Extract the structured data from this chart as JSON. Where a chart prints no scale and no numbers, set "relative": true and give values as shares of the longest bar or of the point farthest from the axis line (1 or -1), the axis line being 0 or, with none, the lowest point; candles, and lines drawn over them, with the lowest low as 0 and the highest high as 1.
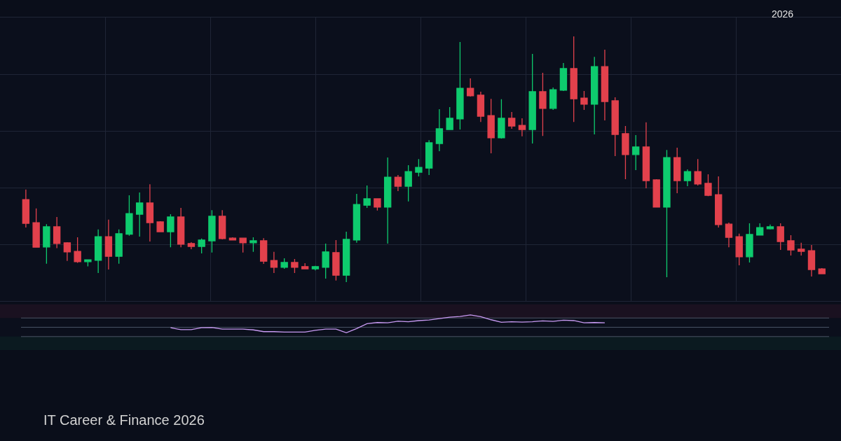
{
  "chart_data": [
    {
      "type": "candlestick",
      "relative": true,
      "grid": true,
      "annotations": [
        "2026",
        "IT Career & Finance 2026"
      ],
      "categories": [
        null,
        null,
        null,
        null,
        null,
        null,
        null,
        null,
        null,
        null,
        null,
        null,
        null,
        null,
        null,
        null,
        null,
        null,
        null,
        null,
        null,
        null,
        null,
        null,
        null,
        null,
        null,
        null,
        null,
        null,
        null,
        null,
        null,
        null,
        null,
        null,
        null,
        null,
        null,
        null,
        null,
        null,
        null,
        null,
        null,
        null,
        null,
        null,
        null,
        null,
        null,
        null,
        null,
        null,
        null,
        null,
        null,
        null,
        null,
        null,
        null,
        null,
        null,
        null,
        null,
        null,
        null,
        null,
        null,
        null,
        null,
        null,
        null,
        null,
        null,
        null,
        null,
        null
      ],
      "ohlc": [
        [
          0.336,
          0.377,
          0.222,
          0.239
        ],
        [
          0.242,
          0.3,
          0.14,
          0.142
        ],
        [
          0.143,
          0.236,
          0.075,
          0.225
        ],
        [
          0.225,
          0.265,
          0.138,
          0.157
        ],
        [
          0.16,
          0.162,
          0.086,
          0.123
        ],
        [
          0.125,
          0.182,
          0.078,
          0.083
        ],
        [
          0.083,
          0.091,
          0.064,
          0.091
        ],
        [
          0.089,
          0.214,
          0.037,
          0.185
        ],
        [
          0.185,
          0.254,
          0.051,
          0.105
        ],
        [
          0.105,
          0.214,
          0.075,
          0.197
        ],
        [
          0.195,
          0.353,
          0.189,
          0.279
        ],
        [
          0.276,
          0.365,
          0.185,
          0.322
        ],
        [
          0.322,
          0.398,
          0.165,
          0.242
        ],
        [
          0.245,
          0.248,
          0.205,
          0.205
        ],
        [
          0.205,
          0.276,
          0.142,
          0.265
        ],
        [
          0.265,
          0.302,
          0.142,
          0.154
        ],
        [
          0.157,
          0.162,
          0.134,
          0.145
        ],
        [
          0.145,
          0.177,
          0.117,
          0.171
        ],
        [
          0.168,
          0.293,
          0.12,
          0.268
        ],
        [
          0.268,
          0.293,
          0.174,
          0.177
        ],
        [
          0.179,
          0.182,
          0.171,
          0.171
        ],
        [
          0.179,
          0.179,
          0.12,
          0.16
        ],
        [
          0.16,
          0.182,
          0.123,
          0.168
        ],
        [
          0.168,
          0.179,
          0.074,
          0.085
        ],
        [
          0.088,
          0.123,
          0.037,
          0.06
        ],
        [
          0.06,
          0.097,
          0.054,
          0.08
        ],
        [
          0.08,
          0.094,
          0.037,
          0.06
        ],
        [
          0.063,
          0.077,
          0.054,
          0.054
        ],
        [
          0.054,
          0.066,
          0.048,
          0.063
        ],
        [
          0.06,
          0.157,
          0.014,
          0.123
        ],
        [
          0.12,
          0.171,
          0.006,
          0.028
        ],
        [
          0.028,
          0.205,
          0,
          0.174
        ],
        [
          0.171,
          0.359,
          0.16,
          0.316
        ],
        [
          0.313,
          0.393,
          0.302,
          0.339
        ],
        [
          0.339,
          0.339,
          0.291,
          0.305
        ],
        [
          0.305,
          0.507,
          0.157,
          0.427
        ],
        [
          0.427,
          0.436,
          0.37,
          0.39
        ],
        [
          0.39,
          0.476,
          0.328,
          0.45
        ],
        [
          0.447,
          0.501,
          0.43,
          0.467
        ],
        [
          0.464,
          0.578,
          0.436,
          0.567
        ],
        [
          0.564,
          0.704,
          0.533,
          0.624
        ],
        [
          0.621,
          0.712,
          0.621,
          0.667
        ],
        [
          0.664,
          0.977,
          0.621,
          0.789
        ],
        [
          0.789,
          0.829,
          0.755,
          0.758
        ],
        [
          0.761,
          0.775,
          0.652,
          0.675
        ],
        [
          0.678,
          0.746,
          0.524,
          0.587
        ],
        [
          0.587,
          0.744,
          0.584,
          0.667
        ],
        [
          0.667,
          0.692,
          0.624,
          0.635
        ],
        [
          0.638,
          0.667,
          0.593,
          0.621
        ],
        [
          0.621,
          0.929,
          0.564,
          0.775
        ],
        [
          0.775,
          0.852,
          0.595,
          0.707
        ],
        [
          0.707,
          0.792,
          0.701,
          0.783
        ],
        [
          0.781,
          0.892,
          0.778,
          0.869
        ],
        [
          0.869,
          1,
          0.652,
          0.746
        ],
        [
          0.749,
          0.778,
          0.701,
          0.724
        ],
        [
          0.724,
          0.917,
          0.601,
          0.877
        ],
        [
          0.877,
          0.946,
          0.658,
          0.735
        ],
        [
          0.738,
          0.752,
          0.513,
          0.601
        ],
        [
          0.604,
          0.635,
          0.419,
          0.519
        ],
        [
          0.519,
          0.598,
          0.456,
          0.55
        ],
        [
          0.55,
          0.65,
          0.382,
          0.413
        ],
        [
          0.416,
          0.419,
          0.305,
          0.305
        ],
        [
          0.305,
          0.538,
          0.02,
          0.507
        ],
        [
          0.507,
          0.547,
          0.362,
          0.413
        ],
        [
          0.413,
          0.459,
          0.39,
          0.45
        ],
        [
          0.45,
          0.501,
          0.393,
          0.399
        ],
        [
          0.402,
          0.439,
          0.35,
          0.353
        ],
        [
          0.356,
          0.43,
          0.222,
          0.234
        ],
        [
          0.236,
          0.242,
          0.142,
          0.182
        ],
        [
          0.185,
          0.197,
          0.068,
          0.103
        ],
        [
          0.103,
          0.239,
          0.08,
          0.194
        ],
        [
          0.191,
          0.239,
          0.191,
          0.222
        ],
        [
          0.217,
          0.234,
          0.214,
          0.225
        ],
        [
          0.225,
          0.239,
          0.131,
          0.165
        ],
        [
          0.168,
          0.191,
          0.108,
          0.131
        ],
        [
          0.134,
          0.16,
          0.108,
          0.125
        ],
        [
          0.128,
          0.151,
          0.023,
          0.051
        ],
        [
          0.054,
          0.057,
          0.034,
          0.034
        ]
      ],
      "colors": [
        "#e2414c",
        "#e2414c",
        "#0ecb6e",
        "#e2414c",
        "#e2414c",
        "#e2414c",
        "#0ecb6e",
        "#0ecb6e",
        "#e2414c",
        "#0ecb6e",
        "#0ecb6e",
        "#0ecb6e",
        "#e2414c",
        "#e2414c",
        "#0ecb6e",
        "#e2414c",
        "#e2414c",
        "#0ecb6e",
        "#0ecb6e",
        "#e2414c",
        "#e2414c",
        "#e2414c",
        "#0ecb6e",
        "#e2414c",
        "#e2414c",
        "#0ecb6e",
        "#e2414c",
        "#e2414c",
        "#0ecb6e",
        "#0ecb6e",
        "#e2414c",
        "#0ecb6e",
        "#0ecb6e",
        "#0ecb6e",
        "#e2414c",
        "#0ecb6e",
        "#e2414c",
        "#0ecb6e",
        "#0ecb6e",
        "#0ecb6e",
        "#0ecb6e",
        "#0ecb6e",
        "#0ecb6e",
        "#e2414c",
        "#e2414c",
        "#e2414c",
        "#0ecb6e",
        "#e2414c",
        "#e2414c",
        "#0ecb6e",
        "#e2414c",
        "#0ecb6e",
        "#0ecb6e",
        "#e2414c",
        "#e2414c",
        "#0ecb6e",
        "#e2414c",
        "#e2414c",
        "#e2414c",
        "#0ecb6e",
        "#e2414c",
        "#e2414c",
        "#0ecb6e",
        "#e2414c",
        "#0ecb6e",
        "#e2414c",
        "#e2414c",
        "#e2414c",
        "#e2414c",
        "#e2414c",
        "#0ecb6e",
        "#0ecb6e",
        "#0ecb6e",
        "#e2414c",
        "#e2414c",
        "#e2414c",
        "#e2414c",
        "#e2414c"
      ]
    },
    {
      "type": "line",
      "relative": true,
      "color": "#c89af2",
      "categories": [
        null,
        null,
        null,
        null,
        null,
        null,
        null,
        null,
        null,
        null,
        null,
        null,
        null,
        null,
        null,
        null,
        null,
        null,
        null,
        null,
        null,
        null,
        null,
        null,
        null,
        null,
        null,
        null,
        null,
        null,
        null,
        null,
        null,
        null,
        null,
        null,
        null,
        null,
        null,
        null,
        null,
        null,
        null
      ],
      "values": [
        0.41,
        0.32,
        0.32,
        0.41,
        0.42,
        0.35,
        0.35,
        0.35,
        0.31,
        0.23,
        0.23,
        0.21,
        0.21,
        0.21,
        0.29,
        0.35,
        0.35,
        0.18,
        0.37,
        0.6,
        0.65,
        0.64,
        0.71,
        0.69,
        0.74,
        0.77,
        0.83,
        0.9,
        0.93,
        1,
        0.92,
        0.78,
        0.66,
        0.69,
        0.67,
        0.69,
        0.73,
        0.7,
        0.76,
        0.74,
        0.64,
        0.65,
        0.64
      ],
      "ref_lines": [
        {
          "axis": "y",
          "value": 0.86,
          "color": "#4b5466"
        },
        {
          "axis": "y",
          "value": 0.43,
          "color": "#4b5466"
        },
        {
          "axis": "y",
          "value": 0,
          "color": "#4b5466"
        }
      ],
      "bands": [
        {
          "axis": "y",
          "from": 0.86,
          "to": 1.5,
          "color": "#1a1120"
        },
        {
          "axis": "y",
          "from": -0.62,
          "to": 0,
          "color": "#0b1a20"
        }
      ]
    }
  ]
}
